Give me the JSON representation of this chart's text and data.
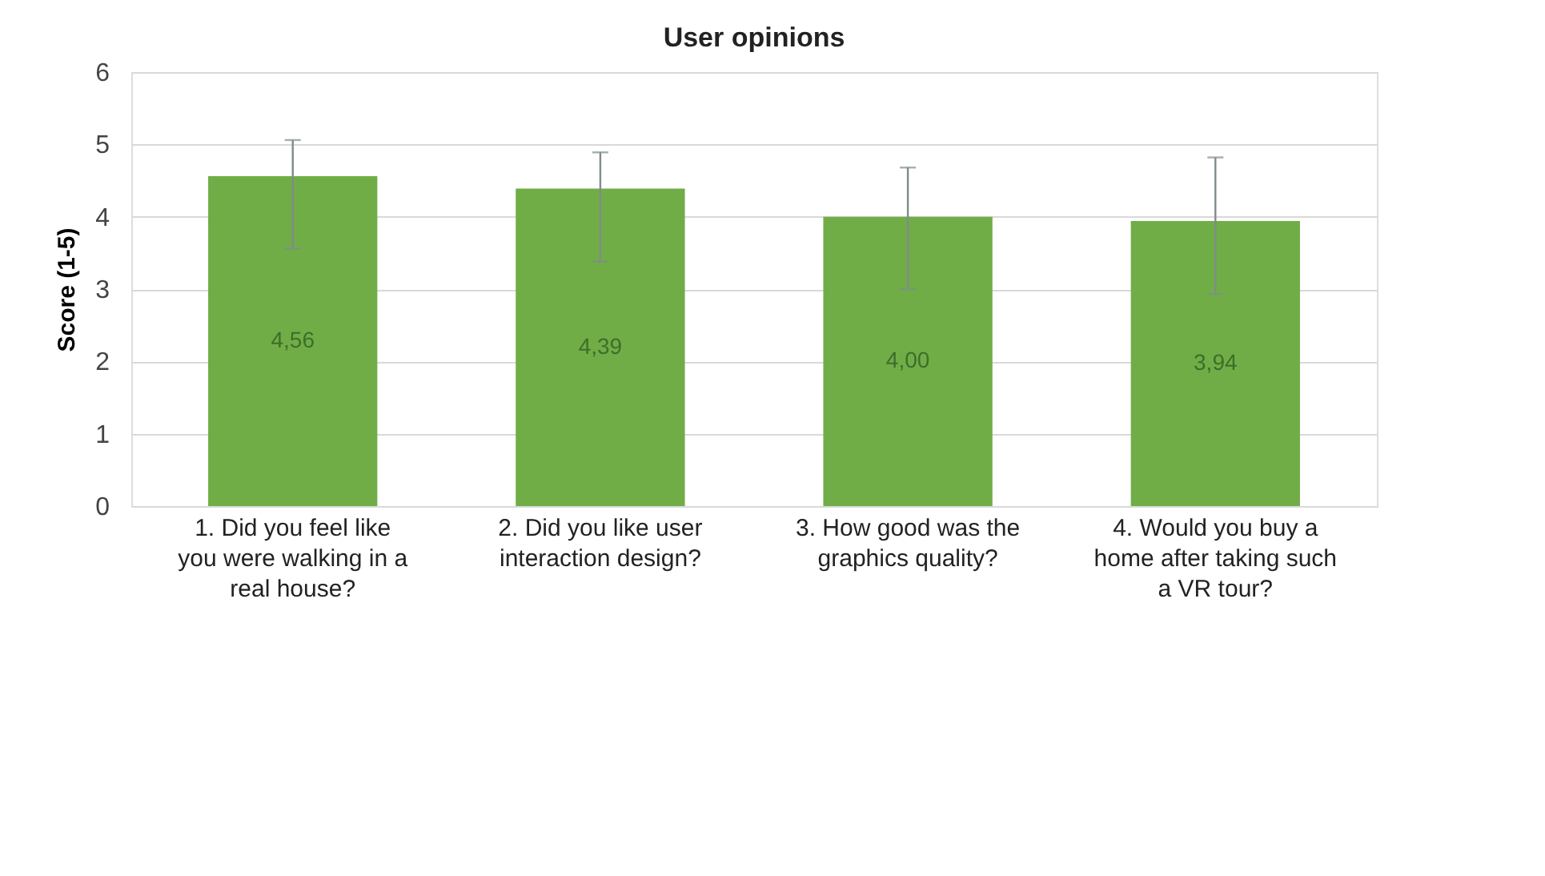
{
  "chart_data": {
    "type": "bar",
    "title": "User opinions",
    "ylabel": "Score (1-5)",
    "categories": [
      "1. Did you feel like you were walking in a real house?",
      "2. Did you like user interaction design?",
      "3. How good was the graphics quality?",
      "4. Would you buy a home after taking such a VR tour?"
    ],
    "values": [
      4.56,
      4.39,
      4.0,
      3.94
    ],
    "errors": [
      [
        3.56,
        5.06
      ],
      [
        3.38,
        4.89
      ],
      [
        3.0,
        4.68
      ],
      [
        2.93,
        4.82
      ]
    ],
    "value_labels": [
      "4,56",
      "4,39",
      "4,00",
      "3,94"
    ],
    "color": "#70ad47",
    "ylim": [
      0,
      6
    ],
    "yticks": [
      0,
      1,
      2,
      3,
      4,
      5,
      6
    ],
    "grid": "y"
  }
}
